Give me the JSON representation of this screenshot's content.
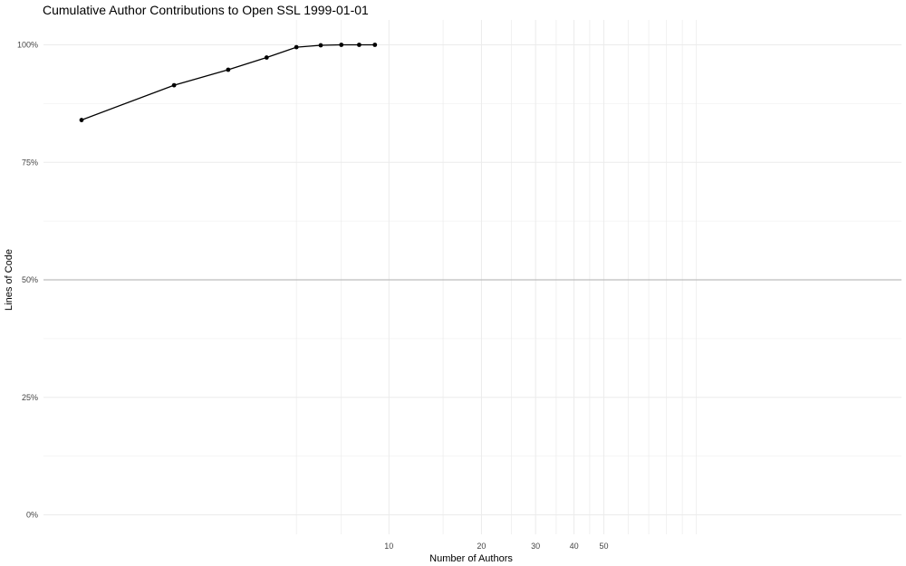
{
  "chart_data": {
    "type": "line",
    "title": "Cumulative Author Contributions to Open SSL 1999-01-01",
    "xlabel": "Number of Authors",
    "ylabel": "Lines of Code",
    "x_scale": "log",
    "xlim": [
      1,
      150
    ],
    "ylim": [
      0,
      1
    ],
    "x_ticks": [
      {
        "value": 10,
        "label": "10"
      },
      {
        "value": 20,
        "label": "20"
      },
      {
        "value": 30,
        "label": "30"
      },
      {
        "value": 40,
        "label": "40"
      },
      {
        "value": 50,
        "label": "50"
      }
    ],
    "x_minor_gridlines": [
      5,
      7,
      15,
      25,
      35,
      45,
      60,
      70,
      80,
      90,
      100
    ],
    "y_ticks": [
      {
        "value": 0,
        "label": "0%"
      },
      {
        "value": 0.25,
        "label": "25%"
      },
      {
        "value": 0.5,
        "label": "50%"
      },
      {
        "value": 0.75,
        "label": "75%"
      },
      {
        "value": 1,
        "label": "100%"
      }
    ],
    "reference_line": 0.5,
    "grid": true,
    "series": [
      {
        "x": [
          1,
          2,
          3,
          4,
          5,
          6,
          7,
          8,
          9
        ],
        "y": [
          0.84,
          0.914,
          0.947,
          0.973,
          0.995,
          0.999,
          1.0,
          1.0,
          1.0
        ]
      }
    ],
    "colors": {
      "line": "#000000",
      "grid": "#ebebeb",
      "reference": "#bdbdbd"
    }
  }
}
